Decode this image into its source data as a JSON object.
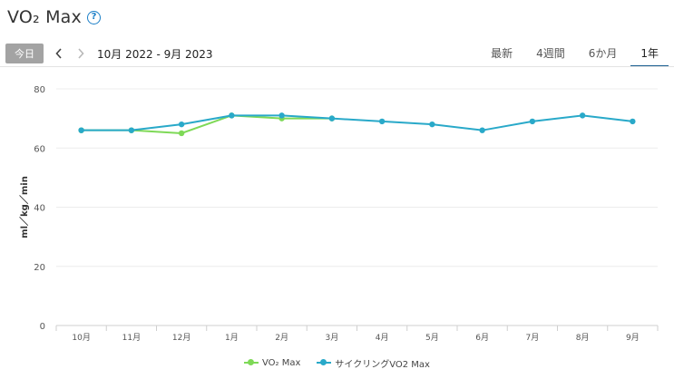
{
  "header": {
    "title": "VO₂ Max",
    "help_icon": "question-circle-icon"
  },
  "toolbar": {
    "today_label": "今日",
    "prev_icon": "chevron-left-icon",
    "next_icon": "chevron-right-icon",
    "date_range": "10月 2022 - 9月 2023",
    "tabs": [
      {
        "label": "最新",
        "active": false
      },
      {
        "label": "4週間",
        "active": false
      },
      {
        "label": "6か月",
        "active": false
      },
      {
        "label": "1年",
        "active": true
      }
    ]
  },
  "chart_data": {
    "type": "line",
    "ylabel": "ml／kg／min",
    "ylim": [
      0,
      80
    ],
    "yticks": [
      0,
      20,
      40,
      60,
      80
    ],
    "categories": [
      "10月",
      "11月",
      "12月",
      "1月",
      "2月",
      "3月",
      "4月",
      "5月",
      "6月",
      "7月",
      "8月",
      "9月"
    ],
    "grid": "horizontal",
    "legend_position": "bottom",
    "series": [
      {
        "name": "VO₂ Max",
        "color": "#7ed957",
        "values": [
          66,
          66,
          65,
          71,
          70,
          70,
          null,
          null,
          null,
          null,
          null,
          null
        ]
      },
      {
        "name": "サイクリングVO2 Max",
        "color": "#29a9c9",
        "values": [
          66,
          66,
          68,
          71,
          71,
          70,
          69,
          68,
          66,
          69,
          71,
          69
        ]
      }
    ]
  }
}
